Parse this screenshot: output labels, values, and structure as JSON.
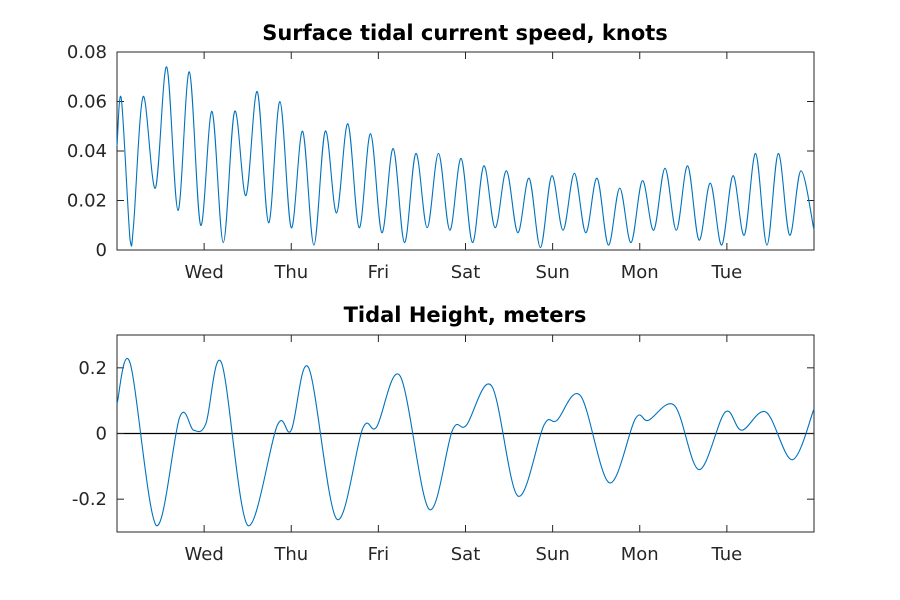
{
  "chart_data": [
    {
      "type": "line",
      "title": "Surface tidal current speed, knots",
      "xlabel": "",
      "ylabel": "",
      "x_range_days": [
        0,
        8
      ],
      "x_ticks": [
        {
          "day": 1,
          "label": "Wed"
        },
        {
          "day": 2,
          "label": "Thu"
        },
        {
          "day": 3,
          "label": "Fri"
        },
        {
          "day": 4,
          "label": "Sat"
        },
        {
          "day": 5,
          "label": "Sun"
        },
        {
          "day": 6,
          "label": "Mon"
        },
        {
          "day": 7,
          "label": "Tue"
        }
      ],
      "ylim": [
        0,
        0.08
      ],
      "y_ticks": [
        {
          "value": 0,
          "label": "0"
        },
        {
          "value": 0.02,
          "label": "0.02"
        },
        {
          "value": 0.04,
          "label": "0.04"
        },
        {
          "value": 0.06,
          "label": "0.06"
        },
        {
          "value": 0.08,
          "label": "0.08"
        }
      ],
      "grid": false,
      "color": "#0072bd",
      "zero_line": false,
      "series": [
        {
          "x": [
            0,
            0.05,
            0.15,
            0.19,
            0.3,
            0.44,
            0.57,
            0.7,
            0.83,
            0.96,
            1.09,
            1.22,
            1.35,
            1.48,
            1.61,
            1.74,
            1.87,
            2.0,
            2.13,
            2.26,
            2.39,
            2.52,
            2.65,
            2.78,
            2.91,
            3.04,
            3.17,
            3.3,
            3.43,
            3.56,
            3.69,
            3.82,
            3.95,
            4.08,
            4.21,
            4.34,
            4.47,
            4.6,
            4.73,
            4.86,
            4.99,
            5.12,
            5.25,
            5.38,
            5.51,
            5.64,
            5.77,
            5.9,
            6.03,
            6.16,
            6.29,
            6.42,
            6.55,
            6.68,
            6.81,
            6.94,
            7.07,
            7.2,
            7.33,
            7.46,
            7.59,
            7.72,
            7.85,
            8.0
          ],
          "y": [
            0.042,
            0.061,
            0.004,
            0.01,
            0.062,
            0.025,
            0.074,
            0.016,
            0.072,
            0.01,
            0.056,
            0.003,
            0.056,
            0.022,
            0.064,
            0.011,
            0.06,
            0.009,
            0.048,
            0.002,
            0.048,
            0.015,
            0.051,
            0.009,
            0.047,
            0.007,
            0.041,
            0.003,
            0.039,
            0.009,
            0.039,
            0.008,
            0.037,
            0.003,
            0.034,
            0.009,
            0.032,
            0.007,
            0.029,
            0.001,
            0.03,
            0.008,
            0.031,
            0.007,
            0.029,
            0.002,
            0.025,
            0.003,
            0.028,
            0.008,
            0.033,
            0.008,
            0.034,
            0.004,
            0.027,
            0.002,
            0.03,
            0.006,
            0.039,
            0.002,
            0.039,
            0.006,
            0.032,
            0.008
          ]
        }
      ]
    },
    {
      "type": "line",
      "title": "Tidal Height, meters",
      "xlabel": "",
      "ylabel": "",
      "x_range_days": [
        0,
        8
      ],
      "x_ticks": [
        {
          "day": 1,
          "label": "Wed"
        },
        {
          "day": 2,
          "label": "Thu"
        },
        {
          "day": 3,
          "label": "Fri"
        },
        {
          "day": 4,
          "label": "Sat"
        },
        {
          "day": 5,
          "label": "Sun"
        },
        {
          "day": 6,
          "label": "Mon"
        },
        {
          "day": 7,
          "label": "Tue"
        }
      ],
      "ylim": [
        -0.3,
        0.3
      ],
      "y_ticks": [
        {
          "value": -0.2,
          "label": "-0.2"
        },
        {
          "value": 0,
          "label": "0"
        },
        {
          "value": 0.2,
          "label": "0.2"
        }
      ],
      "grid": false,
      "color": "#0072bd",
      "zero_line": true,
      "series": [
        {
          "x": [
            0,
            0.15,
            0.45,
            0.72,
            0.88,
            1.02,
            1.2,
            1.5,
            1.84,
            2.0,
            2.2,
            2.52,
            2.82,
            2.98,
            3.25,
            3.58,
            3.85,
            4.01,
            4.3,
            4.6,
            4.9,
            5.05,
            5.32,
            5.65,
            5.95,
            6.1,
            6.4,
            6.68,
            6.98,
            7.17,
            7.45,
            7.75,
            8.0
          ],
          "y": [
            0.09,
            0.215,
            -0.28,
            0.05,
            0.01,
            0.03,
            0.215,
            -0.28,
            0.025,
            0.01,
            0.2,
            -0.26,
            0.015,
            0.02,
            0.175,
            -0.23,
            0.01,
            0.025,
            0.145,
            -0.19,
            0.025,
            0.04,
            0.115,
            -0.15,
            0.045,
            0.04,
            0.085,
            -0.11,
            0.065,
            0.01,
            0.065,
            -0.08,
            0.075
          ]
        }
      ]
    }
  ]
}
